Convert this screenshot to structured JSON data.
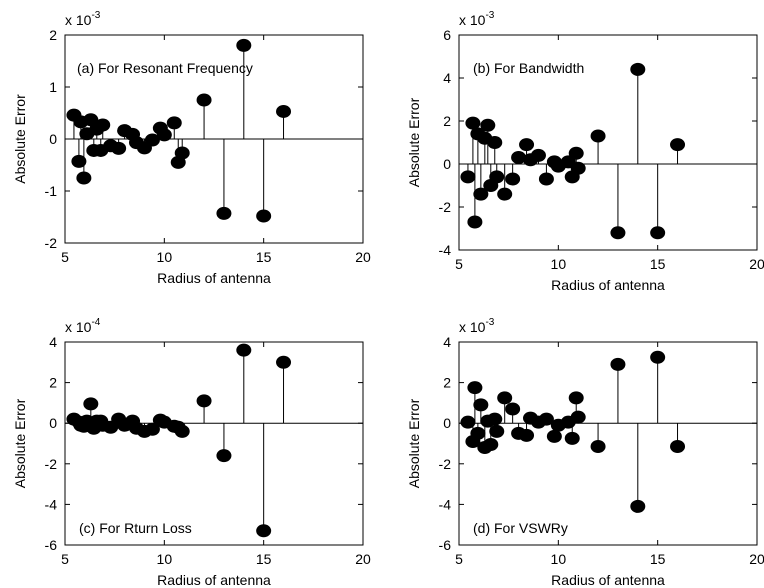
{
  "chart_data": [
    {
      "type": "stem",
      "annotation": "(a) For Resonant Frequency",
      "xlabel": "Radius of antenna",
      "ylabel": "Absolute Error",
      "exponent": {
        "base": "x 10",
        "power": "-3"
      },
      "xlim": [
        5,
        20
      ],
      "ylim": [
        -2,
        2
      ],
      "xticks": [
        "5",
        "10",
        "15",
        "20"
      ],
      "yticks": [
        "-2",
        "-1",
        "0",
        "1",
        "2"
      ],
      "ytick_values": [
        -2,
        -1,
        0,
        1,
        2
      ],
      "points": [
        {
          "x": 5.45,
          "y": 0.46
        },
        {
          "x": 5.7,
          "y": -0.43
        },
        {
          "x": 5.8,
          "y": 0.33
        },
        {
          "x": 5.95,
          "y": -0.75
        },
        {
          "x": 6.1,
          "y": 0.1
        },
        {
          "x": 6.3,
          "y": 0.37
        },
        {
          "x": 6.45,
          "y": -0.22
        },
        {
          "x": 6.6,
          "y": 0.19
        },
        {
          "x": 6.8,
          "y": -0.22
        },
        {
          "x": 6.9,
          "y": 0.27
        },
        {
          "x": 7.3,
          "y": -0.13
        },
        {
          "x": 7.7,
          "y": -0.18
        },
        {
          "x": 8.0,
          "y": 0.16
        },
        {
          "x": 8.4,
          "y": 0.09
        },
        {
          "x": 8.6,
          "y": -0.07
        },
        {
          "x": 9.0,
          "y": -0.17
        },
        {
          "x": 9.4,
          "y": -0.02
        },
        {
          "x": 9.8,
          "y": 0.21
        },
        {
          "x": 10.0,
          "y": 0.08
        },
        {
          "x": 10.5,
          "y": 0.31
        },
        {
          "x": 10.7,
          "y": -0.45
        },
        {
          "x": 10.9,
          "y": -0.27
        },
        {
          "x": 12.0,
          "y": 0.75
        },
        {
          "x": 13.0,
          "y": -1.43
        },
        {
          "x": 14.0,
          "y": 1.8
        },
        {
          "x": 15.0,
          "y": -1.48
        },
        {
          "x": 16.0,
          "y": 0.53
        }
      ]
    },
    {
      "type": "stem",
      "annotation": "(b) For Bandwidth",
      "xlabel": "Radius of antenna",
      "ylabel": "Absolute Error",
      "exponent": {
        "base": "x 10",
        "power": "-3"
      },
      "xlim": [
        5,
        20
      ],
      "ylim": [
        -4,
        6
      ],
      "xticks": [
        "5",
        "10",
        "15",
        "20"
      ],
      "yticks": [
        "-4",
        "-2",
        "0",
        "2",
        "4",
        "6"
      ],
      "ytick_values": [
        -4,
        -2,
        0,
        2,
        4,
        6
      ],
      "points": [
        {
          "x": 5.45,
          "y": -0.6
        },
        {
          "x": 5.7,
          "y": 1.9
        },
        {
          "x": 5.8,
          "y": -2.7
        },
        {
          "x": 5.95,
          "y": 1.4
        },
        {
          "x": 6.1,
          "y": -1.4
        },
        {
          "x": 6.3,
          "y": 1.2
        },
        {
          "x": 6.45,
          "y": 1.8
        },
        {
          "x": 6.6,
          "y": -1.0
        },
        {
          "x": 6.8,
          "y": 1.0
        },
        {
          "x": 6.9,
          "y": -0.6
        },
        {
          "x": 7.3,
          "y": -1.4
        },
        {
          "x": 7.7,
          "y": -0.7
        },
        {
          "x": 8.0,
          "y": 0.3
        },
        {
          "x": 8.4,
          "y": 0.9
        },
        {
          "x": 8.6,
          "y": 0.2
        },
        {
          "x": 9.0,
          "y": 0.4
        },
        {
          "x": 9.4,
          "y": -0.7
        },
        {
          "x": 9.8,
          "y": 0.1
        },
        {
          "x": 10.0,
          "y": -0.1
        },
        {
          "x": 10.5,
          "y": 0.1
        },
        {
          "x": 10.7,
          "y": -0.6
        },
        {
          "x": 10.9,
          "y": 0.5
        },
        {
          "x": 11.0,
          "y": -0.2
        },
        {
          "x": 12.0,
          "y": 1.3
        },
        {
          "x": 13.0,
          "y": -3.2
        },
        {
          "x": 14.0,
          "y": 4.4
        },
        {
          "x": 15.0,
          "y": -3.2
        },
        {
          "x": 16.0,
          "y": 0.9
        }
      ]
    },
    {
      "type": "stem",
      "annotation": "(c) For Rturn Loss",
      "xlabel": "Radius of antenna",
      "ylabel": "Absolute Error",
      "exponent": {
        "base": "x 10",
        "power": "-4"
      },
      "xlim": [
        5,
        20
      ],
      "ylim": [
        -6,
        4
      ],
      "xticks": [
        "5",
        "10",
        "15",
        "20"
      ],
      "yticks": [
        "-6",
        "-4",
        "-2",
        "0",
        "2",
        "4"
      ],
      "ytick_values": [
        -6,
        -4,
        -2,
        0,
        2,
        4
      ],
      "points": [
        {
          "x": 5.45,
          "y": 0.2
        },
        {
          "x": 5.7,
          "y": 0.05
        },
        {
          "x": 5.8,
          "y": -0.1
        },
        {
          "x": 5.95,
          "y": -0.15
        },
        {
          "x": 6.1,
          "y": 0.1
        },
        {
          "x": 6.3,
          "y": 0.95
        },
        {
          "x": 6.45,
          "y": -0.25
        },
        {
          "x": 6.6,
          "y": 0.1
        },
        {
          "x": 6.8,
          "y": 0.1
        },
        {
          "x": 6.9,
          "y": -0.1
        },
        {
          "x": 7.3,
          "y": -0.2
        },
        {
          "x": 7.7,
          "y": 0.2
        },
        {
          "x": 8.0,
          "y": -0.1
        },
        {
          "x": 8.4,
          "y": 0.1
        },
        {
          "x": 8.6,
          "y": -0.25
        },
        {
          "x": 9.0,
          "y": -0.4
        },
        {
          "x": 9.4,
          "y": -0.3
        },
        {
          "x": 9.8,
          "y": 0.15
        },
        {
          "x": 10.0,
          "y": 0.05
        },
        {
          "x": 10.5,
          "y": -0.15
        },
        {
          "x": 10.7,
          "y": -0.2
        },
        {
          "x": 10.9,
          "y": -0.4
        },
        {
          "x": 12.0,
          "y": 1.1
        },
        {
          "x": 13.0,
          "y": -1.6
        },
        {
          "x": 14.0,
          "y": 3.6
        },
        {
          "x": 15.0,
          "y": -5.3
        },
        {
          "x": 16.0,
          "y": 3.0
        }
      ]
    },
    {
      "type": "stem",
      "annotation": "(d) For VSWRy",
      "xlabel": "Radius of antenna",
      "ylabel": "Absolute Error",
      "exponent": {
        "base": "x 10",
        "power": "-3"
      },
      "xlim": [
        5,
        20
      ],
      "ylim": [
        -6,
        4
      ],
      "xticks": [
        "5",
        "10",
        "15",
        "20"
      ],
      "yticks": [
        "-6",
        "-4",
        "-2",
        "0",
        "2",
        "4"
      ],
      "ytick_values": [
        -6,
        -4,
        -2,
        0,
        2,
        4
      ],
      "points": [
        {
          "x": 5.45,
          "y": 0.05
        },
        {
          "x": 5.7,
          "y": -0.9
        },
        {
          "x": 5.8,
          "y": 1.75
        },
        {
          "x": 5.95,
          "y": -0.5
        },
        {
          "x": 6.1,
          "y": 0.9
        },
        {
          "x": 6.3,
          "y": -1.2
        },
        {
          "x": 6.45,
          "y": 0.1
        },
        {
          "x": 6.6,
          "y": -1.05
        },
        {
          "x": 6.8,
          "y": 0.2
        },
        {
          "x": 6.9,
          "y": -0.4
        },
        {
          "x": 7.3,
          "y": 1.25
        },
        {
          "x": 7.7,
          "y": 0.7
        },
        {
          "x": 8.0,
          "y": -0.5
        },
        {
          "x": 8.4,
          "y": -0.6
        },
        {
          "x": 8.6,
          "y": 0.25
        },
        {
          "x": 9.0,
          "y": 0.05
        },
        {
          "x": 9.4,
          "y": 0.2
        },
        {
          "x": 9.8,
          "y": -0.65
        },
        {
          "x": 10.0,
          "y": -0.1
        },
        {
          "x": 10.5,
          "y": 0.05
        },
        {
          "x": 10.7,
          "y": -0.75
        },
        {
          "x": 10.9,
          "y": 1.25
        },
        {
          "x": 11.0,
          "y": 0.3
        },
        {
          "x": 12.0,
          "y": -1.15
        },
        {
          "x": 13.0,
          "y": 2.9
        },
        {
          "x": 14.0,
          "y": -4.1
        },
        {
          "x": 15.0,
          "y": 3.25
        },
        {
          "x": 16.0,
          "y": -1.15
        }
      ]
    }
  ]
}
